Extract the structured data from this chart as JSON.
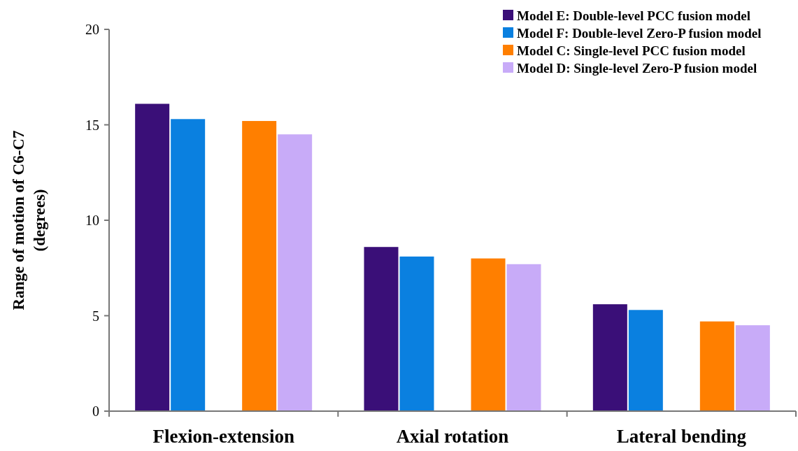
{
  "chart_data": {
    "type": "bar",
    "ylabel": "Range of motion of C6-C7 (degrees)",
    "categories": [
      "Flexion-extension",
      "Axial rotation",
      "Lateral bending"
    ],
    "series": [
      {
        "name": "Model E: Double-level PCC fusion model",
        "color": "#3a0f78",
        "values": [
          16.1,
          8.6,
          5.6
        ]
      },
      {
        "name": "Model F: Double-level Zero-P fusion model",
        "color": "#0a80e0",
        "values": [
          15.3,
          8.1,
          5.3
        ]
      },
      {
        "name": "Model C: Single-level PCC fusion model",
        "color": "#ff7f00",
        "values": [
          15.2,
          8.0,
          4.7
        ]
      },
      {
        "name": "Model D: Single-level Zero-P fusion model",
        "color": "#c8abf8",
        "values": [
          14.5,
          7.7,
          4.5
        ]
      }
    ],
    "ylim": [
      0,
      20
    ],
    "yticks": [
      0,
      5,
      10,
      15,
      20
    ],
    "legend": "top right",
    "grid": false
  }
}
